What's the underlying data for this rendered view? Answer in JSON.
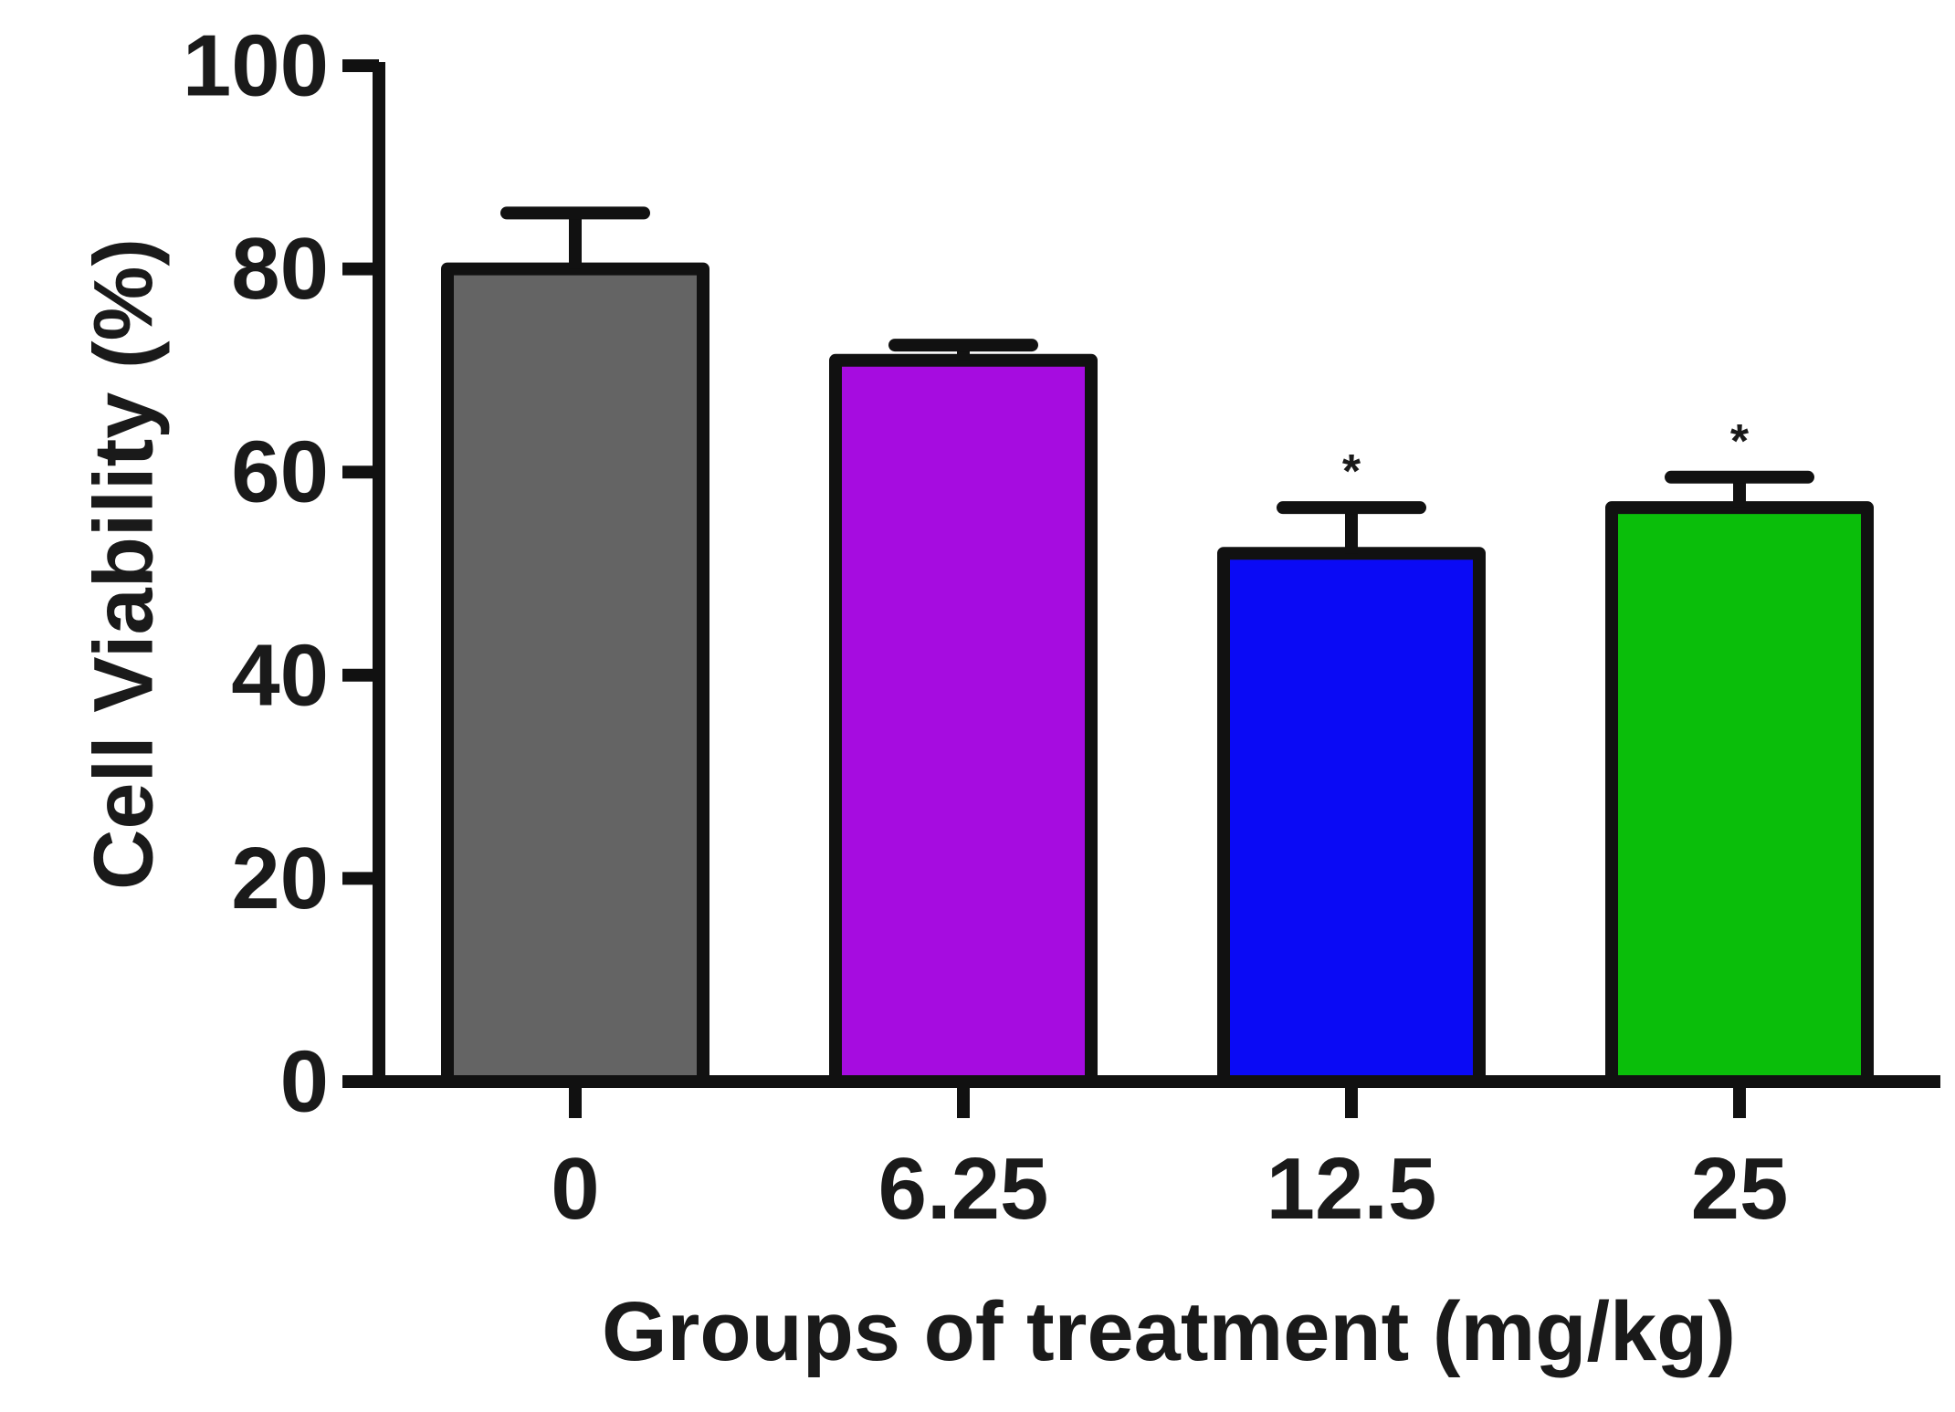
{
  "chart_data": {
    "type": "bar",
    "title": "",
    "xlabel": "Groups of treatment (mg/kg)",
    "ylabel": "Cell  Viability (%)",
    "categories": [
      "0",
      "6.25",
      "12.5",
      "25"
    ],
    "values": [
      80,
      71,
      52,
      56.5
    ],
    "errors": [
      5.5,
      1.5,
      4.5,
      3
    ],
    "significance": [
      "",
      "",
      "*",
      "*"
    ],
    "colors": [
      "#646464",
      "#a60ce0",
      "#0a0af5",
      "#0abe0a"
    ],
    "ylim": [
      0,
      100
    ],
    "yticks": [
      "0",
      "20",
      "40",
      "60",
      "80",
      "100"
    ],
    "ytick_values": [
      0,
      20,
      40,
      60,
      80,
      100
    ],
    "grid": false,
    "legend": "none"
  }
}
